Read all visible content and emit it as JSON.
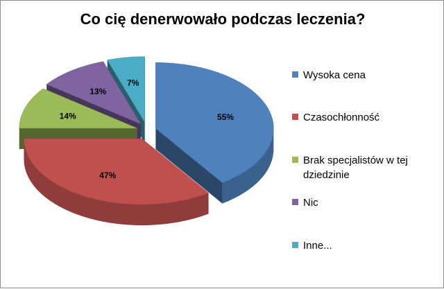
{
  "chart_data": {
    "type": "pie",
    "title": "Co cię denerwowało podczas leczenia?",
    "slices": [
      {
        "label": "Wysoka cena",
        "value": 55,
        "value_label": "55%",
        "color": "#4f81bd"
      },
      {
        "label": "Czasochłonność",
        "value": 47,
        "value_label": "47%",
        "color": "#c0504d"
      },
      {
        "label": "Brak specjalistów w tej dziedzinie",
        "value": 14,
        "value_label": "14%",
        "color": "#9bbb59"
      },
      {
        "label": "Nic",
        "value": 13,
        "value_label": "13%",
        "color": "#8064a2"
      },
      {
        "label": "Inne...",
        "value": 7,
        "value_label": "7%",
        "color": "#4bacc6"
      }
    ],
    "legend_position": "right",
    "exploded": true,
    "style": "3d"
  }
}
